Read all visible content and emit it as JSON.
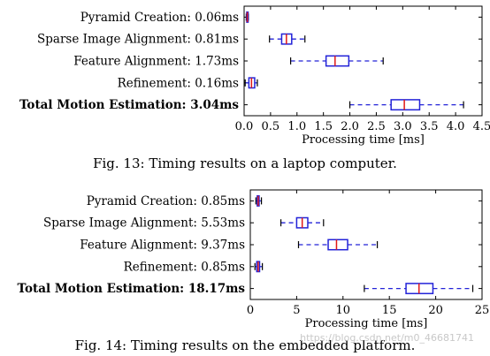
{
  "figures": [
    {
      "caption": "Fig. 13: Timing results on a laptop computer."
    },
    {
      "caption": "Fig. 14: Timing results on the embedded platform."
    }
  ],
  "watermark": "https://blog.csdn.net/m0_46681741",
  "colors": {
    "box": "#2323d8",
    "median": "#e01818",
    "whisker": "#2323d8",
    "axis": "#000000"
  },
  "chart_data": [
    {
      "type": "box",
      "orientation": "horizontal",
      "xlabel": "Processing time [ms]",
      "xlim": [
        0,
        4.5
      ],
      "xticks": [
        "0.0",
        "0.5",
        "1.0",
        "1.5",
        "2.0",
        "2.5",
        "3.0",
        "3.5",
        "4.0",
        "4.5"
      ],
      "xtick_values": [
        0,
        0.5,
        1.0,
        1.5,
        2.0,
        2.5,
        3.0,
        3.5,
        4.0,
        4.5
      ],
      "categories": [
        {
          "label": "Pyramid Creation: 0.06ms",
          "bold": false,
          "min": 0.04,
          "q1": 0.05,
          "median": 0.06,
          "q3": 0.07,
          "max": 0.08
        },
        {
          "label": "Sparse Image Alignment: 0.81ms",
          "bold": false,
          "min": 0.48,
          "q1": 0.71,
          "median": 0.8,
          "q3": 0.9,
          "max": 1.15
        },
        {
          "label": "Feature Alignment: 1.73ms",
          "bold": false,
          "min": 0.88,
          "q1": 1.55,
          "median": 1.72,
          "q3": 1.98,
          "max": 2.63
        },
        {
          "label": "Refinement: 0.16ms",
          "bold": false,
          "min": 0.02,
          "q1": 0.09,
          "median": 0.14,
          "q3": 0.2,
          "max": 0.25
        },
        {
          "label": "Total Motion Estimation: 3.04ms",
          "bold": true,
          "min": 2.0,
          "q1": 2.78,
          "median": 3.03,
          "q3": 3.32,
          "max": 4.15
        }
      ]
    },
    {
      "type": "box",
      "orientation": "horizontal",
      "xlabel": "Processing time [ms]",
      "xlim": [
        0,
        25
      ],
      "xticks": [
        "0",
        "5",
        "10",
        "15",
        "20",
        "25"
      ],
      "xtick_values": [
        0,
        5,
        10,
        15,
        20,
        25
      ],
      "categories": [
        {
          "label": "Pyramid Creation: 0.85ms",
          "bold": false,
          "min": 0.6,
          "q1": 0.75,
          "median": 0.85,
          "q3": 0.95,
          "max": 1.2
        },
        {
          "label": "Sparse Image Alignment: 5.53ms",
          "bold": false,
          "min": 3.3,
          "q1": 5.0,
          "median": 5.6,
          "q3": 6.2,
          "max": 7.9
        },
        {
          "label": "Feature Alignment: 9.37ms",
          "bold": false,
          "min": 5.2,
          "q1": 8.4,
          "median": 9.3,
          "q3": 10.5,
          "max": 13.7
        },
        {
          "label": "Refinement: 0.85ms",
          "bold": false,
          "min": 0.5,
          "q1": 0.7,
          "median": 0.85,
          "q3": 1.0,
          "max": 1.3
        },
        {
          "label": "Total Motion Estimation: 18.17ms",
          "bold": true,
          "min": 12.3,
          "q1": 16.8,
          "median": 18.2,
          "q3": 19.7,
          "max": 24.0
        }
      ]
    }
  ]
}
